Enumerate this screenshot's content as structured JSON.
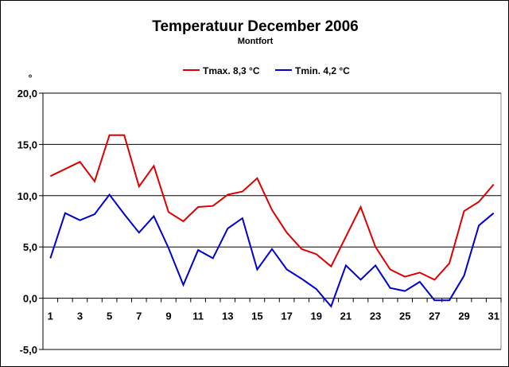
{
  "chart_data": {
    "type": "line",
    "title": "Temperatuur December 2006",
    "subtitle": "Montfort",
    "ylabel": "°",
    "xlabel": "",
    "ylim": [
      -5,
      20
    ],
    "yticks": [
      "20,0",
      "15,0",
      "10,0",
      "5,0",
      "0,0",
      "-5,0"
    ],
    "ytick_values": [
      20,
      15,
      10,
      5,
      0,
      -5
    ],
    "grid": true,
    "legend_position": "top",
    "x": [
      1,
      2,
      3,
      4,
      5,
      6,
      7,
      8,
      9,
      10,
      11,
      12,
      13,
      14,
      15,
      16,
      17,
      18,
      19,
      20,
      21,
      22,
      23,
      24,
      25,
      26,
      27,
      28,
      29,
      30,
      31
    ],
    "xtick_labels": [
      "1",
      "3",
      "5",
      "7",
      "9",
      "11",
      "13",
      "15",
      "17",
      "19",
      "21",
      "23",
      "25",
      "27",
      "29",
      "31"
    ],
    "series": [
      {
        "name": "Tmax. 8,3 °C",
        "color": "#dd0000",
        "values": [
          11.9,
          12.6,
          13.3,
          11.4,
          15.9,
          15.9,
          10.9,
          12.9,
          8.4,
          7.5,
          8.9,
          9.0,
          10.1,
          10.4,
          11.7,
          8.6,
          6.4,
          4.8,
          4.3,
          3.1,
          6.0,
          8.9,
          5.0,
          2.8,
          2.1,
          2.5,
          1.8,
          3.4,
          8.5,
          9.4,
          11.1
        ]
      },
      {
        "name": "Tmin. 4,2 °C",
        "color": "#0000cc",
        "values": [
          3.9,
          8.3,
          7.6,
          8.2,
          10.1,
          8.2,
          6.4,
          8.0,
          4.9,
          1.3,
          4.7,
          3.9,
          6.8,
          7.8,
          2.8,
          4.8,
          2.8,
          1.9,
          0.9,
          -0.8,
          3.2,
          1.8,
          3.2,
          1.0,
          0.7,
          1.6,
          -0.2,
          -0.2,
          2.2,
          7.1,
          8.3
        ]
      }
    ]
  }
}
